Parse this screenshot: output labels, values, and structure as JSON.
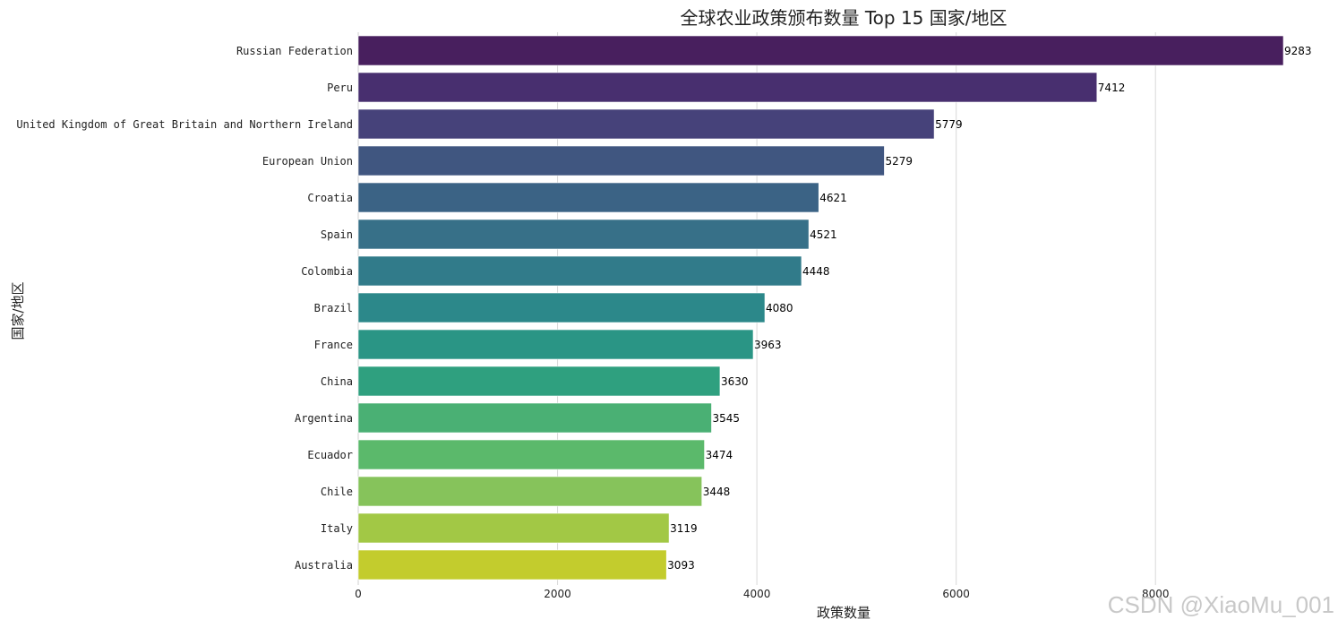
{
  "chart_data": {
    "type": "bar",
    "orientation": "horizontal",
    "title": "全球农业政策颁布数量 Top 15 国家/地区",
    "xlabel": "政策数量",
    "ylabel": "国家/地区",
    "xlim": [
      0,
      9283
    ],
    "xticks": [
      0,
      2000,
      4000,
      6000,
      8000
    ],
    "grid": "x",
    "legend": "none",
    "categories": [
      "Russian Federation",
      "Peru",
      "United Kingdom of Great Britain and Northern Ireland",
      "European Union",
      "Croatia",
      "Spain",
      "Colombia",
      "Brazil",
      "France",
      "China",
      "Argentina",
      "Ecuador",
      "Chile",
      "Italy",
      "Australia"
    ],
    "values": [
      9283,
      7412,
      5779,
      5279,
      4621,
      4521,
      4448,
      4080,
      3963,
      3630,
      3545,
      3474,
      3448,
      3119,
      3093
    ],
    "data_labels": [
      "9283",
      "7412",
      "5779",
      "5279",
      "4621",
      "4521",
      "4448",
      "4080",
      "3963",
      "3630",
      "3545",
      "3474",
      "3448",
      "3119",
      "3093"
    ],
    "colors": [
      "#481f5e",
      "#482f6f",
      "#46427a",
      "#405680",
      "#3b6385",
      "#377088",
      "#317b8a",
      "#2c888a",
      "#2a9585",
      "#2fa07f",
      "#4ab074",
      "#5bb96b",
      "#86c35b",
      "#a2c845",
      "#c3cc2d"
    ]
  },
  "watermark": "CSDN @XiaoMu_001"
}
